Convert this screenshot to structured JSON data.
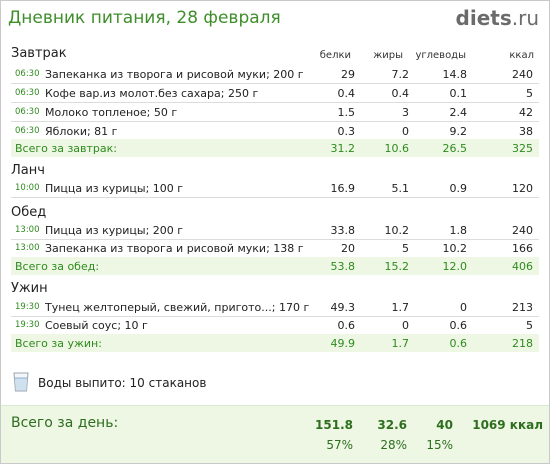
{
  "header": {
    "title": "Дневник питания, 28 февраля",
    "brand_name": "diets",
    "brand_dot": ".",
    "brand_tld": "ru"
  },
  "columns": {
    "protein": "белки",
    "fat": "жиры",
    "carbs": "углеводы",
    "kcal": "ккал"
  },
  "meals": [
    {
      "title": "Завтрак",
      "items": [
        {
          "time": "06:30",
          "name": "Запеканка из творога и рисовой муки; 200 г",
          "protein": "29",
          "fat": "7.2",
          "carbs": "14.8",
          "kcal": "240"
        },
        {
          "time": "06:30",
          "name": "Кофе вар.из молот.без сахара; 250 г",
          "protein": "0.4",
          "fat": "0.4",
          "carbs": "0.1",
          "kcal": "5"
        },
        {
          "time": "06:30",
          "name": "Молоко топленое; 50 г",
          "protein": "1.5",
          "fat": "3",
          "carbs": "2.4",
          "kcal": "42"
        },
        {
          "time": "06:30",
          "name": "Яблоки; 81 г",
          "protein": "0.3",
          "fat": "0",
          "carbs": "9.2",
          "kcal": "38"
        }
      ],
      "total": {
        "label": "Всего за завтрак:",
        "protein": "31.2",
        "fat": "10.6",
        "carbs": "26.5",
        "kcal": "325"
      }
    },
    {
      "title": "Ланч",
      "items": [
        {
          "time": "10:00",
          "name": "Пицца из курицы; 100 г",
          "protein": "16.9",
          "fat": "5.1",
          "carbs": "0.9",
          "kcal": "120"
        }
      ],
      "total": null
    },
    {
      "title": "Обед",
      "items": [
        {
          "time": "13:00",
          "name": "Пицца из курицы; 200 г",
          "protein": "33.8",
          "fat": "10.2",
          "carbs": "1.8",
          "kcal": "240"
        },
        {
          "time": "13:00",
          "name": "Запеканка из творога и рисовой муки; 138 г",
          "protein": "20",
          "fat": "5",
          "carbs": "10.2",
          "kcal": "166"
        }
      ],
      "total": {
        "label": "Всего за обед:",
        "protein": "53.8",
        "fat": "15.2",
        "carbs": "12.0",
        "kcal": "406"
      }
    },
    {
      "title": "Ужин",
      "items": [
        {
          "time": "19:30",
          "name": "Тунец желтоперый, свежий, пригото...; 170 г",
          "protein": "49.3",
          "fat": "1.7",
          "carbs": "0",
          "kcal": "213"
        },
        {
          "time": "19:30",
          "name": "Соевый соус; 10 г",
          "protein": "0.6",
          "fat": "0",
          "carbs": "0.6",
          "kcal": "5"
        }
      ],
      "total": {
        "label": "Всего за ужин:",
        "protein": "49.9",
        "fat": "1.7",
        "carbs": "0.6",
        "kcal": "218"
      }
    }
  ],
  "water": {
    "icon": "water-glass-icon",
    "text": "Воды выпито: 10 стаканов"
  },
  "day_total": {
    "label": "Всего за день:",
    "protein": "151.8",
    "fat": "32.6",
    "carbs": "40",
    "kcal": "1069 ккал",
    "protein_pct": "57%",
    "fat_pct": "28%",
    "carbs_pct": "15%"
  },
  "colors": {
    "accent_green": "#2e8b1e",
    "title_green": "#3e8e2a",
    "total_bg": "#eef7e4"
  }
}
